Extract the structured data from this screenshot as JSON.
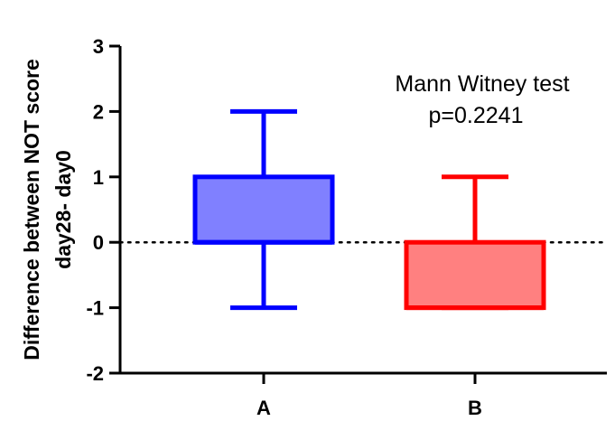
{
  "chart_data": {
    "type": "box",
    "categories": [
      "A",
      "B"
    ],
    "series": [
      {
        "category": "A",
        "min": -1,
        "q1": 0,
        "median": 0,
        "q3": 1,
        "max": 2,
        "stroke": "#0000ff",
        "fill": "#8080ff"
      },
      {
        "category": "B",
        "min": -1,
        "q1": -1,
        "median": -1,
        "q3": 0,
        "max": 1,
        "stroke": "#ff0000",
        "fill": "#ff8080"
      }
    ],
    "ylabel_line1": "Difference between NOT score",
    "ylabel_line2": "day28- day0",
    "ylim": [
      -2,
      3
    ],
    "yticks": [
      -2,
      -1,
      0,
      1,
      2,
      3
    ],
    "ytick_labels": [
      "-2",
      "-1",
      "0",
      "1",
      "2",
      "3"
    ],
    "reference_line": 0,
    "annotation_line1": "Mann Witney test",
    "annotation_line2": "p=0.2241",
    "grid": false,
    "legend": "none"
  }
}
